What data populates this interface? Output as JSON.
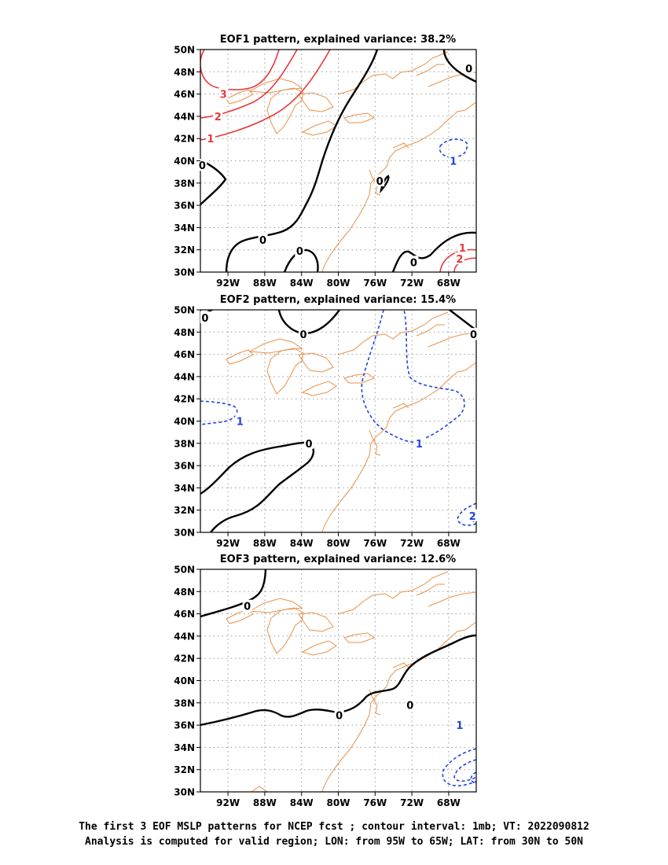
{
  "colors": {
    "coast": "#e8914a",
    "positive": "#e8383a",
    "negative": "#2244dd",
    "zero": "#000000",
    "grid": "#9a9a9a"
  },
  "chart_data": [
    {
      "type": "contour-map",
      "title": "EOF1 pattern, explained variance: 38.2%",
      "x_ticks": [
        "92W",
        "88W",
        "84W",
        "80W",
        "76W",
        "72W",
        "68W"
      ],
      "y_ticks": [
        "50N",
        "48N",
        "46N",
        "44N",
        "42N",
        "40N",
        "38N",
        "36N",
        "34N",
        "32N",
        "30N"
      ],
      "contour_labels": [
        {
          "text": "3",
          "kind": "positive",
          "lon": -92.5,
          "lat": 46.0
        },
        {
          "text": "2",
          "kind": "positive",
          "lon": -93.1,
          "lat": 44.0
        },
        {
          "text": "1",
          "kind": "positive",
          "lon": -93.9,
          "lat": 42.0
        },
        {
          "text": "0",
          "kind": "zero",
          "lon": -94.8,
          "lat": 39.6
        },
        {
          "text": "0",
          "kind": "zero",
          "lon": -88.2,
          "lat": 32.9
        },
        {
          "text": "0",
          "kind": "zero",
          "lon": -84.2,
          "lat": 31.9
        },
        {
          "text": "0",
          "kind": "zero",
          "lon": -75.5,
          "lat": 38.2
        },
        {
          "text": "0",
          "kind": "zero",
          "lon": -71.8,
          "lat": 30.9
        },
        {
          "text": "0",
          "kind": "zero",
          "lon": -65.8,
          "lat": 48.3
        },
        {
          "text": "1",
          "kind": "negative",
          "lon": -67.5,
          "lat": 40.0
        },
        {
          "text": "1",
          "kind": "positive",
          "lon": -66.5,
          "lat": 32.2
        },
        {
          "text": "2",
          "kind": "positive",
          "lon": -66.8,
          "lat": 31.2
        }
      ]
    },
    {
      "type": "contour-map",
      "title": "EOF2 pattern, explained variance: 15.4%",
      "x_ticks": [
        "92W",
        "88W",
        "84W",
        "80W",
        "76W",
        "72W",
        "68W"
      ],
      "y_ticks": [
        "50N",
        "48N",
        "46N",
        "44N",
        "42N",
        "40N",
        "38N",
        "36N",
        "34N",
        "32N",
        "30N"
      ],
      "contour_labels": [
        {
          "text": "0",
          "kind": "zero",
          "lon": -94.5,
          "lat": 49.3
        },
        {
          "text": "0",
          "kind": "zero",
          "lon": -83.8,
          "lat": 47.8
        },
        {
          "text": "0",
          "kind": "zero",
          "lon": -65.3,
          "lat": 47.8
        },
        {
          "text": "1",
          "kind": "negative",
          "lon": -90.7,
          "lat": 40.0
        },
        {
          "text": "0",
          "kind": "zero",
          "lon": -83.2,
          "lat": 38.0
        },
        {
          "text": "1",
          "kind": "negative",
          "lon": -71.2,
          "lat": 38.0
        },
        {
          "text": "2",
          "kind": "negative",
          "lon": -65.4,
          "lat": 31.5
        }
      ]
    },
    {
      "type": "contour-map",
      "title": "EOF3 pattern, explained variance: 12.6%",
      "x_ticks": [
        "92W",
        "88W",
        "84W",
        "80W",
        "76W",
        "72W",
        "68W"
      ],
      "y_ticks": [
        "50N",
        "48N",
        "46N",
        "44N",
        "42N",
        "40N",
        "38N",
        "36N",
        "34N",
        "32N",
        "30N"
      ],
      "contour_labels": [
        {
          "text": "0",
          "kind": "zero",
          "lon": -89.9,
          "lat": 46.7
        },
        {
          "text": "0",
          "kind": "zero",
          "lon": -79.9,
          "lat": 36.9
        },
        {
          "text": "0",
          "kind": "zero",
          "lon": -72.2,
          "lat": 37.8
        },
        {
          "text": "1",
          "kind": "negative",
          "lon": -66.8,
          "lat": 36.0
        }
      ]
    }
  ],
  "caption": {
    "line1": "The first 3 EOF MSLP patterns for NCEP fcst ; contour interval: 1mb; VT: 2022090812",
    "line2": "Analysis is computed for valid region; LON: from 95W to 65W; LAT: from 30N to 50N"
  }
}
